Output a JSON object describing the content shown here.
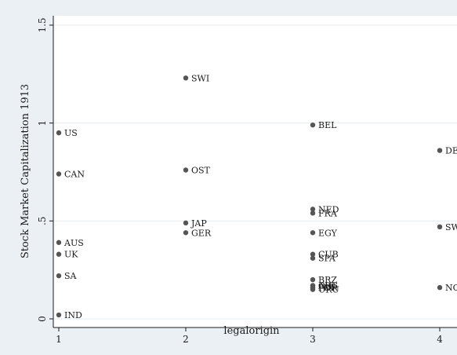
{
  "chart_data": {
    "type": "scatter",
    "title": "",
    "xlabel": "legalorigin",
    "ylabel": "Stock Market Capitalization 1913",
    "xlim": [
      1,
      4
    ],
    "ylim": [
      0,
      1.5
    ],
    "x_ticks": [
      1,
      2,
      3,
      4
    ],
    "x_tick_labels": [
      "1",
      "2",
      "3",
      "4"
    ],
    "y_ticks": [
      0,
      0.5,
      1,
      1.5
    ],
    "y_tick_labels": [
      "0",
      ".5",
      "1",
      "1.5"
    ],
    "grid": true,
    "colors": {
      "background": "#eaf0f4",
      "plot_background": "#ffffff",
      "grid": "#e6ecf0",
      "marker": "#555555",
      "text": "#1b1b1b"
    },
    "points": [
      {
        "label": "US",
        "x": 1,
        "y": 0.95
      },
      {
        "label": "CAN",
        "x": 1,
        "y": 0.74
      },
      {
        "label": "AUS",
        "x": 1,
        "y": 0.39
      },
      {
        "label": "UK",
        "x": 1,
        "y": 0.33
      },
      {
        "label": "SA",
        "x": 1,
        "y": 0.22
      },
      {
        "label": "IND",
        "x": 1,
        "y": 0.02
      },
      {
        "label": "SWI",
        "x": 2,
        "y": 1.23
      },
      {
        "label": "OST",
        "x": 2,
        "y": 0.76
      },
      {
        "label": "JAP",
        "x": 2,
        "y": 0.49
      },
      {
        "label": "GER",
        "x": 2,
        "y": 0.44
      },
      {
        "label": "BEL",
        "x": 3,
        "y": 0.99
      },
      {
        "label": "NED",
        "x": 3,
        "y": 0.56
      },
      {
        "label": "FRA",
        "x": 3,
        "y": 0.54
      },
      {
        "label": "EGY",
        "x": 3,
        "y": 0.44
      },
      {
        "label": "CUB",
        "x": 3,
        "y": 0.33
      },
      {
        "label": "SPA",
        "x": 3,
        "y": 0.31
      },
      {
        "label": "BRZ",
        "x": 3,
        "y": 0.2
      },
      {
        "label": "CHI",
        "x": 3,
        "y": 0.17
      },
      {
        "label": "ARG",
        "x": 3,
        "y": 0.17
      },
      {
        "label": "ITA",
        "x": 3,
        "y": 0.16
      },
      {
        "label": "POR",
        "x": 3,
        "y": 0.16
      },
      {
        "label": "URU",
        "x": 3,
        "y": 0.15
      },
      {
        "label": "DEN",
        "x": 4,
        "y": 0.86
      },
      {
        "label": "SWE",
        "x": 4,
        "y": 0.47
      },
      {
        "label": "NOR",
        "x": 4,
        "y": 0.16
      }
    ]
  }
}
